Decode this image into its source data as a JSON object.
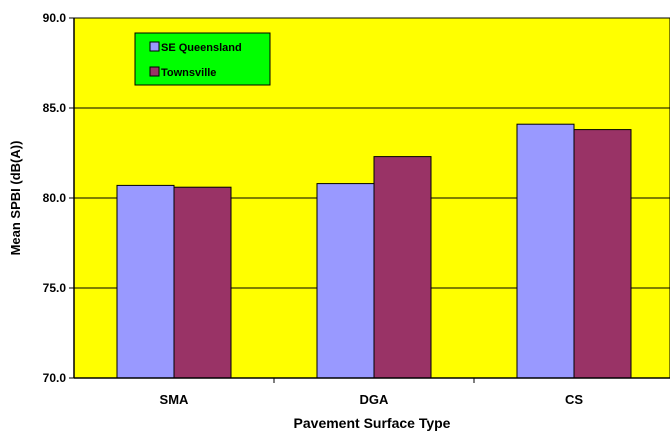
{
  "chart_data": {
    "type": "bar",
    "xlabel": "Pavement Surface Type",
    "ylabel": "Mean SPBI (dB(A))",
    "categories": [
      "SMA",
      "DGA",
      "CS"
    ],
    "series": [
      {
        "name": "SE Queensland",
        "values": [
          80.7,
          80.8,
          84.1
        ],
        "color": "#9999ff"
      },
      {
        "name": "Townsville",
        "values": [
          80.6,
          82.3,
          83.8
        ],
        "color": "#993366"
      }
    ],
    "ylim": [
      70.0,
      90.0
    ],
    "yticks": [
      "70.0",
      "75.0",
      "80.0",
      "85.0",
      "90.0"
    ],
    "grid": true,
    "legend_position": "top-left",
    "colors": {
      "plot_background": "#ffff00",
      "legend_background": "#00ff00",
      "gridline": "#000000",
      "axis": "#000000"
    }
  }
}
